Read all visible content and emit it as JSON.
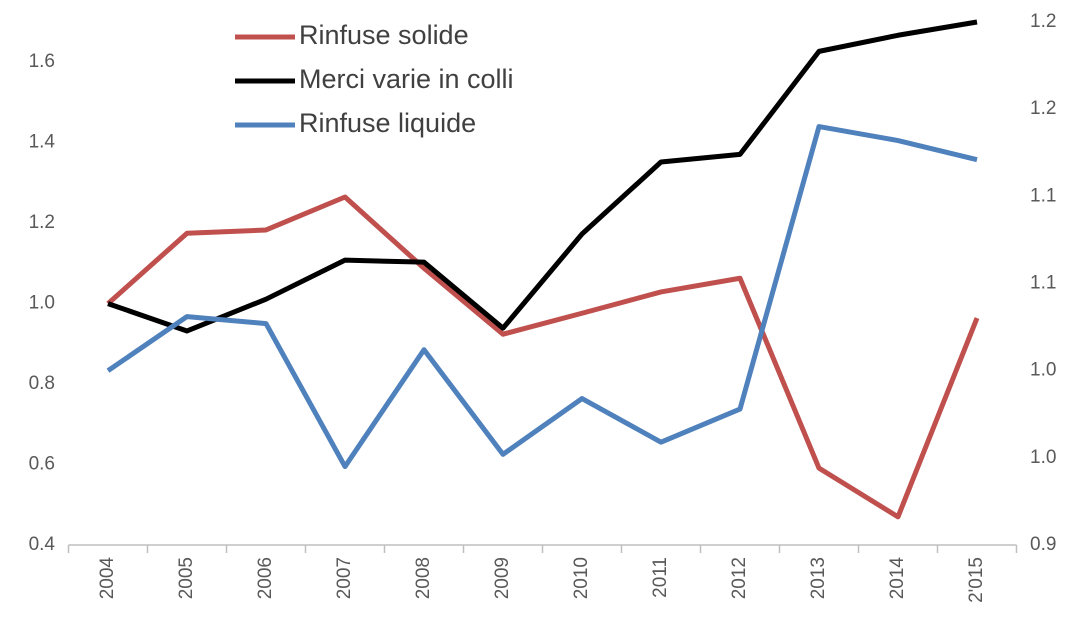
{
  "chart_data": {
    "type": "line",
    "categories": [
      "2004",
      "2005",
      "2006",
      "2007",
      "2008",
      "2009",
      "2010",
      "2011",
      "2012",
      "2013",
      "2014",
      "2'015"
    ],
    "series": [
      {
        "name": "Rinfuse solide",
        "color": "#c0504d",
        "values": [
          1.0,
          1.175,
          1.183,
          1.265,
          1.088,
          0.924,
          0.976,
          1.029,
          1.063,
          0.591,
          0.47,
          0.964
        ]
      },
      {
        "name": "Merci varie in colli",
        "color": "#000000",
        "values": [
          1.0,
          0.932,
          1.011,
          1.108,
          1.103,
          0.939,
          1.173,
          1.352,
          1.371,
          1.627,
          1.667,
          1.7
        ]
      },
      {
        "name": "Rinfuse liquide",
        "color": "#4f81bd",
        "axis": "y2",
        "values": [
          1.0,
          1.031,
          1.027,
          0.945,
          1.012,
          0.952,
          0.984,
          0.959,
          0.978,
          1.14,
          1.132,
          1.121
        ]
      }
    ],
    "ylim": [
      0.4,
      1.7
    ],
    "yticks": [
      0.4,
      0.6,
      0.8,
      {
        "value": 1,
        "label": "1.0"
      },
      1.2,
      1.4,
      1.6
    ],
    "y2lim": [
      0.9,
      1.2
    ],
    "y2ticks": [
      0.9,
      {
        "value": 0.95,
        "label": "1.0"
      },
      {
        "value": 1,
        "label": "1.0"
      },
      {
        "value": 1.05,
        "label": "1.1"
      },
      1.1,
      {
        "value": 1.15,
        "label": "1.2"
      },
      1.2
    ],
    "legend": "top-left"
  }
}
